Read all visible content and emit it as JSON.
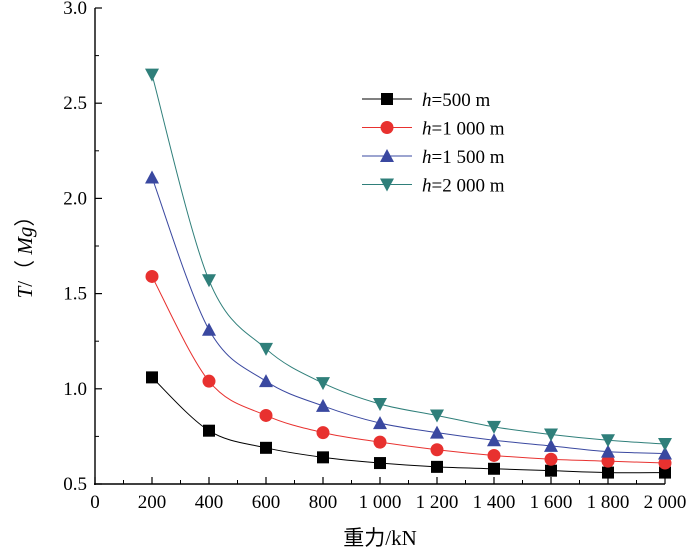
{
  "chart_data": {
    "type": "line",
    "title": "",
    "xlabel": "重力/kN",
    "ylabel_parts": {
      "var": "T",
      "sep": "/（ ",
      "unit": "Mg",
      "close": "）"
    },
    "xlim": [
      0,
      2000
    ],
    "ylim": [
      0.5,
      3.0
    ],
    "x_ticks": [
      0,
      200,
      400,
      600,
      800,
      1000,
      1200,
      1400,
      1600,
      1800,
      2000
    ],
    "x_tick_labels": [
      "0",
      "200",
      "400",
      "600",
      "800",
      "1 000",
      "1 200",
      "1 400",
      "1 600",
      "1 800",
      "2 000"
    ],
    "y_ticks": [
      0.5,
      1.0,
      1.5,
      2.0,
      2.5,
      3.0
    ],
    "y_tick_labels": [
      "0.5",
      "1.0",
      "1.5",
      "2.0",
      "2.5",
      "3.0"
    ],
    "legend_position": "top-right",
    "x": [
      200,
      400,
      600,
      800,
      1000,
      1200,
      1400,
      1600,
      1800,
      2000
    ],
    "series": [
      {
        "name": "h=500 m",
        "var": "h",
        "label": "=500 m",
        "marker": "square",
        "color": "#000000",
        "values": [
          1.06,
          0.78,
          0.69,
          0.64,
          0.61,
          0.59,
          0.58,
          0.57,
          0.56,
          0.56
        ]
      },
      {
        "name": "h=1 000 m",
        "var": "h",
        "label": "=1 000 m",
        "marker": "circle",
        "color": "#e8312f",
        "values": [
          1.59,
          1.04,
          0.86,
          0.77,
          0.72,
          0.68,
          0.65,
          0.63,
          0.62,
          0.61
        ]
      },
      {
        "name": "h=1 500 m",
        "var": "h",
        "label": "=1 500 m",
        "marker": "triangle-up",
        "color": "#3a48a0",
        "values": [
          2.11,
          1.31,
          1.04,
          0.91,
          0.82,
          0.77,
          0.73,
          0.7,
          0.67,
          0.66
        ]
      },
      {
        "name": "h=2 000 m",
        "var": "h",
        "label": "=2 000 m",
        "marker": "triangle-down",
        "color": "#2f7f7a",
        "values": [
          2.65,
          1.57,
          1.21,
          1.03,
          0.92,
          0.86,
          0.8,
          0.76,
          0.73,
          0.71
        ]
      }
    ]
  }
}
